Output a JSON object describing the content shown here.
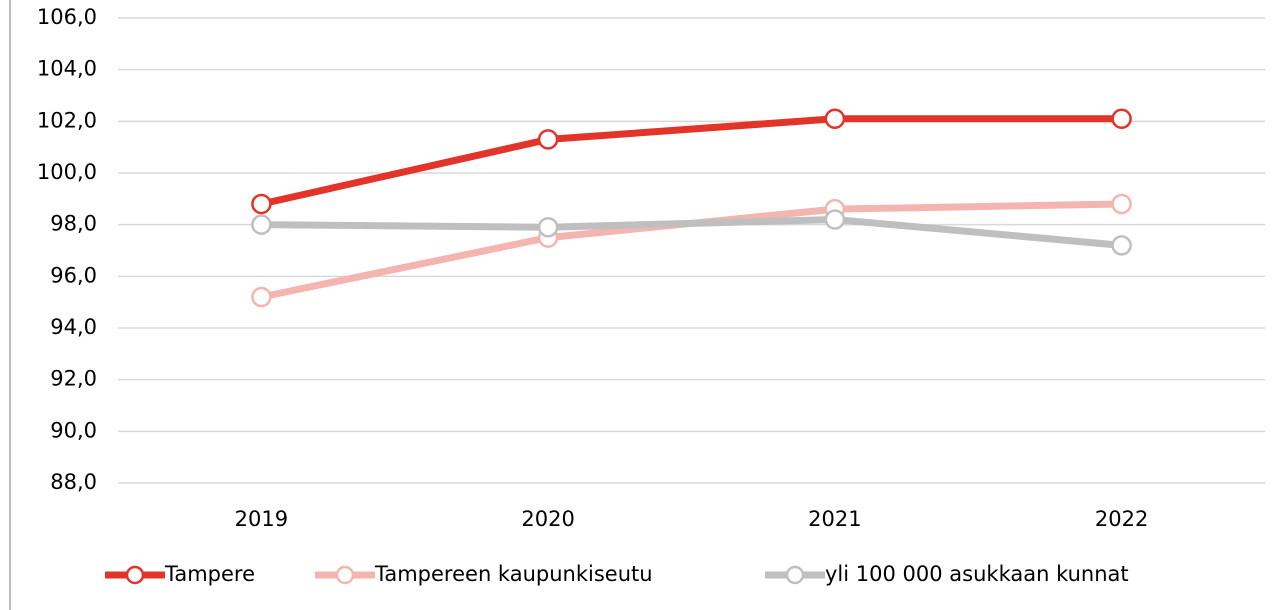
{
  "chart_data": {
    "type": "line",
    "categories": [
      "2019",
      "2020",
      "2021",
      "2022"
    ],
    "series": [
      {
        "name": "Tampere",
        "color": "#e3342a",
        "values": [
          98.8,
          101.3,
          102.1,
          102.1
        ]
      },
      {
        "name": "Tampereen kaupunkiseutu",
        "color": "#f4b4b0",
        "values": [
          95.2,
          97.5,
          98.6,
          98.8
        ]
      },
      {
        "name": "yli 100 000 asukkaan kunnat",
        "color": "#bfbfbf",
        "values": [
          98.0,
          97.9,
          98.2,
          97.2
        ]
      }
    ],
    "ylim": [
      88,
      106
    ],
    "yticks": [
      {
        "value": 88,
        "label": "88,0"
      },
      {
        "value": 90,
        "label": "90,0"
      },
      {
        "value": 92,
        "label": "92,0"
      },
      {
        "value": 94,
        "label": "94,0"
      },
      {
        "value": 96,
        "label": "96,0"
      },
      {
        "value": 98,
        "label": "98,0"
      },
      {
        "value": 100,
        "label": "100,0"
      },
      {
        "value": 102,
        "label": "102,0"
      },
      {
        "value": 104,
        "label": "104,0"
      },
      {
        "value": 106,
        "label": "106,0"
      }
    ],
    "grid": true,
    "legend": "bottom"
  }
}
